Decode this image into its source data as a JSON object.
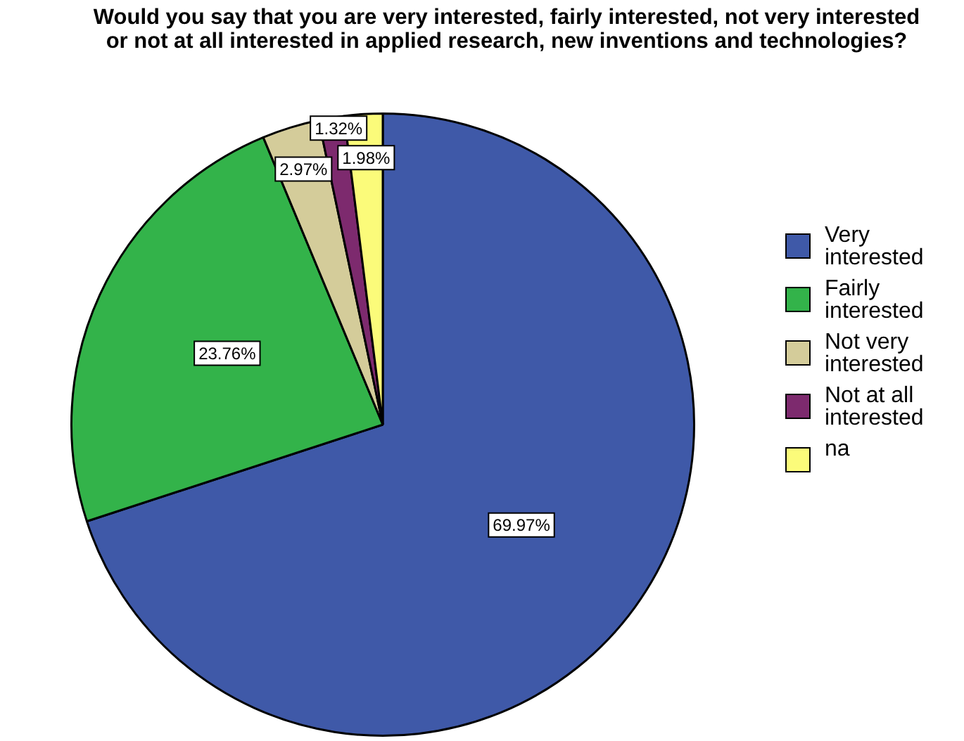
{
  "chart_data": {
    "type": "pie",
    "title": "Would you say that you are very interested, fairly interested, not very interested or not at all interested in applied research, new inventions and technologies?",
    "categories": [
      "Very interested",
      "Fairly interested",
      "Not very interested",
      "Not at all interested",
      "na"
    ],
    "values": [
      69.97,
      23.76,
      2.97,
      1.32,
      1.98
    ],
    "value_labels": [
      "69.97%",
      "23.76%",
      "2.97%",
      "1.32%",
      "1.98%"
    ],
    "colors": [
      "#3f59a8",
      "#33b34a",
      "#d4cc9a",
      "#7d2a6e",
      "#fbfb7a"
    ],
    "legend": "right"
  }
}
